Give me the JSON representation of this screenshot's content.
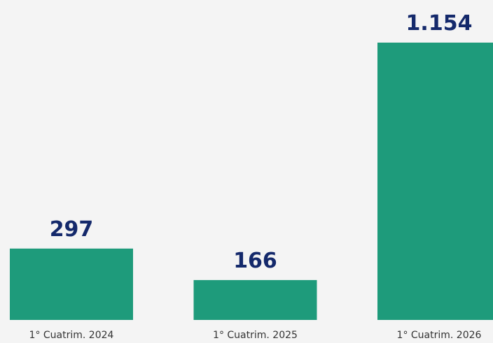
{
  "chart_data": {
    "type": "bar",
    "categories": [
      "1° Cuatrim. 2024",
      "1° Cuatrim. 2025",
      "1° Cuatrim. 2026"
    ],
    "values": [
      297,
      166,
      1154
    ],
    "value_labels": [
      "297",
      "166",
      "1.154"
    ],
    "color": "#1e9b7b"
  }
}
